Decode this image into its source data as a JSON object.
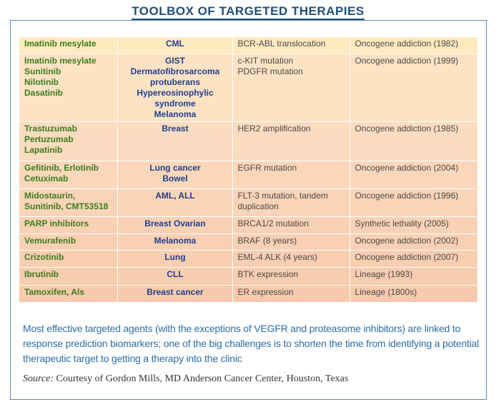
{
  "title": "TOOLBOX OF TARGETED THERAPIES",
  "rows": [
    {
      "drugs": [
        "Imatinib mesylate"
      ],
      "disease": [
        "CML"
      ],
      "biomarker": [
        "BCR-ABL translocation"
      ],
      "mechanism": "Oncogene addiction (1982)"
    },
    {
      "drugs": [
        "Imatinib mesylate",
        "Sunitinib",
        "Nilotinib",
        "Dasatinib"
      ],
      "disease": [
        "GIST",
        "Dermatofibrosarcoma",
        "protuberans",
        "Hypereosinophylic",
        "syndrome",
        "Melanoma"
      ],
      "biomarker": [
        "c-KIT mutation",
        "PDGFR mutation"
      ],
      "mechanism": "Oncogene addiction (1999)"
    },
    {
      "drugs": [
        "Trastuzumab",
        "Pertuzumab",
        "Lapatinib"
      ],
      "disease": [
        "Breast"
      ],
      "biomarker": [
        "HER2 amplification"
      ],
      "mechanism": "Oncogene addiction (1985)"
    },
    {
      "drugs": [
        "Gefitinib, Erlotinib",
        "Cetuximab"
      ],
      "disease": [
        "Lung cancer",
        "Bowel"
      ],
      "biomarker": [
        "EGFR mutation"
      ],
      "mechanism": "Oncogene addiction (2004)"
    },
    {
      "drugs": [
        "Midostaurin,",
        "Sunitinib, CMT53518"
      ],
      "disease": [
        "AML, ALL"
      ],
      "biomarker": [
        "FLT-3 mutation, tandem",
        "duplication"
      ],
      "mechanism": "Oncogene addiction (1996)"
    },
    {
      "drugs": [
        "PARP inhibitors"
      ],
      "disease": [
        "Breast Ovarian"
      ],
      "biomarker": [
        "BRCA1/2 mutation"
      ],
      "mechanism": "Synthetic lethality (2005)"
    },
    {
      "drugs": [
        "Vemurafenib"
      ],
      "disease": [
        "Melanoma"
      ],
      "biomarker": [
        "BRAF (8 years)"
      ],
      "mechanism": "Oncogene addiction (2002)"
    },
    {
      "drugs": [
        "Crizotinib"
      ],
      "disease": [
        "Lung"
      ],
      "biomarker": [
        "EML-4 ALK (4 years)"
      ],
      "mechanism": "Oncogene addiction (2007)"
    },
    {
      "drugs": [
        "Ibrutinib"
      ],
      "disease": [
        "CLL"
      ],
      "biomarker": [
        "BTK expression"
      ],
      "mechanism": "Lineage (1993)"
    },
    {
      "drugs": [
        "Tamoxifen, Als"
      ],
      "disease": [
        "Breast cancer"
      ],
      "biomarker": [
        "ER expression"
      ],
      "mechanism": "Lineage (1800s)"
    }
  ],
  "caption": "Most effective targeted agents (with the exceptions of VEGFR and proteasome inhibitors) are linked to response prediction biomarkers; one of the big challenges is to shorten the time from identifying a potential therapeutic target to getting a therapy into the clinic",
  "source_label": "Source:",
  "source_text": "Courtesy of Gordon Mills, MD Anderson Cancer Center, Houston, Texas",
  "colors": {
    "title": "#1f4e79",
    "drug_text": "#3a7d1e",
    "disease_text": "#1f3f8f",
    "caption_text": "#2e6da4",
    "row_bg_top": "#ffe9bf",
    "row_bg_bottom": "#f7caad",
    "frame_border": "#5b87b5"
  }
}
